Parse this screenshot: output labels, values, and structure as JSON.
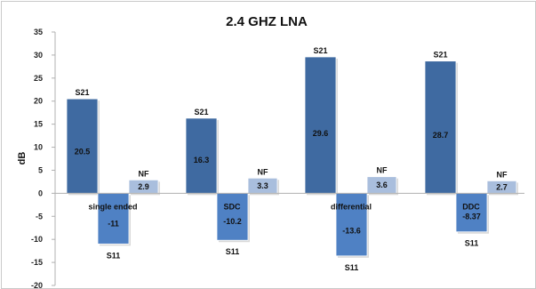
{
  "chart_data": {
    "type": "bar",
    "title": "2.4 GHZ LNA",
    "ylabel": "dB",
    "xlabel": "",
    "ylim": [
      -20,
      35
    ],
    "yticks": [
      35,
      30,
      25,
      20,
      15,
      10,
      5,
      0,
      -5,
      -10,
      -15,
      -20
    ],
    "grid": false,
    "legend": "none",
    "colors": {
      "S21": "#3f6aa1",
      "S11": "#4f81c4",
      "NF": "#a9bedd"
    },
    "groups": [
      {
        "category": "single ended",
        "bars": [
          {
            "series": "S21",
            "value": 20.5,
            "label": "S21",
            "value_label": "20.5"
          },
          {
            "series": "S11",
            "value": -11,
            "label": "S11",
            "value_label": "-11"
          },
          {
            "series": "NF",
            "value": 2.9,
            "label": "NF",
            "value_label": "2.9"
          }
        ]
      },
      {
        "category": "SDC",
        "bars": [
          {
            "series": "S21",
            "value": 16.3,
            "label": "S21",
            "value_label": "16.3"
          },
          {
            "series": "S11",
            "value": -10.2,
            "label": "S11",
            "value_label": "-10.2"
          },
          {
            "series": "NF",
            "value": 3.3,
            "label": "NF",
            "value_label": "3.3"
          }
        ]
      },
      {
        "category": "differential",
        "bars": [
          {
            "series": "S21",
            "value": 29.6,
            "label": "S21",
            "value_label": "29.6"
          },
          {
            "series": "S11",
            "value": -13.6,
            "label": "S11",
            "value_label": "-13.6"
          },
          {
            "series": "NF",
            "value": 3.6,
            "label": "NF",
            "value_label": "3.6"
          }
        ]
      },
      {
        "category": "DDC",
        "bars": [
          {
            "series": "S21",
            "value": 28.7,
            "label": "S21",
            "value_label": "28.7"
          },
          {
            "series": "S11",
            "value": -8.37,
            "label": "S11",
            "value_label": "-8.37"
          },
          {
            "series": "NF",
            "value": 2.7,
            "label": "NF",
            "value_label": "2.7"
          }
        ]
      }
    ]
  }
}
